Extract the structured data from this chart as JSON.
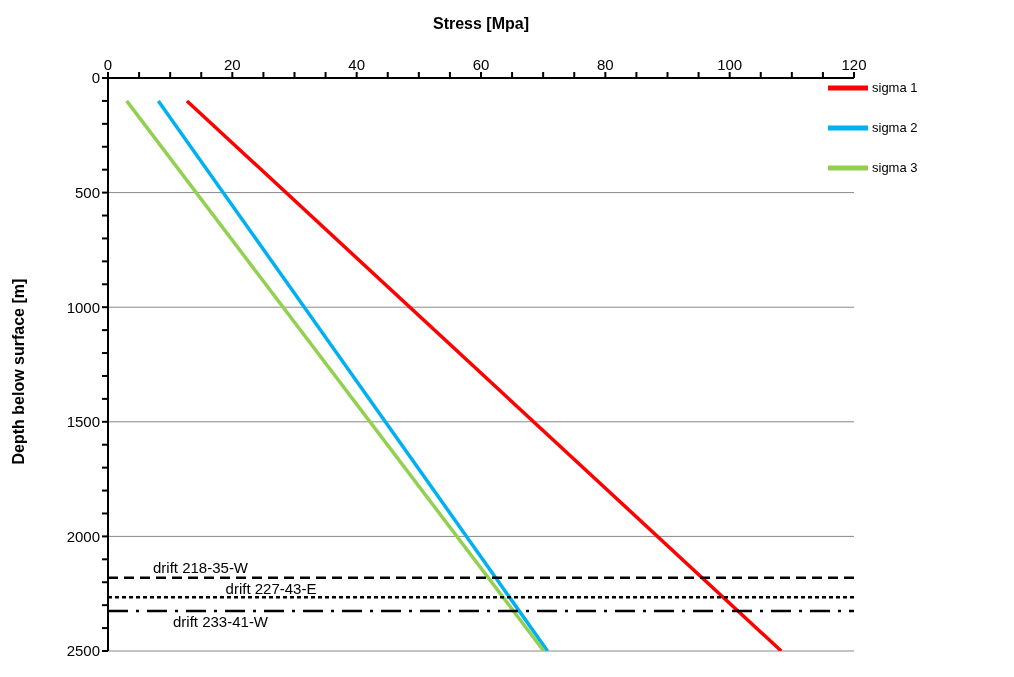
{
  "chart_data": {
    "type": "line",
    "xlabel": "Stress [Mpa]",
    "ylabel": "Depth below surface [m]",
    "xlim": [
      0,
      120
    ],
    "xticks": [
      0,
      {
        "value": 5,
        "label": null
      },
      {
        "value": 10,
        "label": null
      },
      {
        "value": 15,
        "label": null
      },
      20,
      {
        "value": 25,
        "label": null
      },
      {
        "value": 30,
        "label": null
      },
      {
        "value": 35,
        "label": null
      },
      40,
      {
        "value": 45,
        "label": null
      },
      {
        "value": 50,
        "label": null
      },
      {
        "value": 55,
        "label": null
      },
      60,
      {
        "value": 65,
        "label": null
      },
      {
        "value": 70,
        "label": null
      },
      {
        "value": 75,
        "label": null
      },
      80,
      {
        "value": 85,
        "label": null
      },
      {
        "value": 90,
        "label": null
      },
      {
        "value": 95,
        "label": null
      },
      100,
      {
        "value": 105,
        "label": null
      },
      {
        "value": 110,
        "label": null
      },
      {
        "value": 115,
        "label": null
      },
      120
    ],
    "ylim": [
      2500,
      0
    ],
    "yticks": [
      0,
      {
        "value": 100,
        "label": null
      },
      {
        "value": 200,
        "label": null
      },
      {
        "value": 300,
        "label": null
      },
      {
        "value": 400,
        "label": null
      },
      500,
      {
        "value": 600,
        "label": null
      },
      {
        "value": 700,
        "label": null
      },
      {
        "value": 800,
        "label": null
      },
      {
        "value": 900,
        "label": null
      },
      1000,
      {
        "value": 1100,
        "label": null
      },
      {
        "value": 1200,
        "label": null
      },
      {
        "value": 1300,
        "label": null
      },
      {
        "value": 1400,
        "label": null
      },
      1500,
      {
        "value": 1600,
        "label": null
      },
      {
        "value": 1700,
        "label": null
      },
      {
        "value": 1800,
        "label": null
      },
      {
        "value": 1900,
        "label": null
      },
      2000,
      {
        "value": 2100,
        "label": null
      },
      {
        "value": 2200,
        "label": null
      },
      {
        "value": 2300,
        "label": null
      },
      {
        "value": 2400,
        "label": null
      },
      2500
    ],
    "grid": "y",
    "legend": "top right",
    "marker": "none",
    "line_style": "solid",
    "series": [
      {
        "name": "sigma 1",
        "color": "#ff0000",
        "x": [
          12.7,
          108.3
        ],
        "values": [
          100,
          2500
        ]
      },
      {
        "name": "sigma 2",
        "color": "#00b0f0",
        "x": [
          8.1,
          70.7
        ],
        "values": [
          100,
          2500
        ]
      },
      {
        "name": "sigma 3",
        "color": "#92d050",
        "x": [
          3.0,
          70.1
        ],
        "values": [
          100,
          2500
        ]
      }
    ],
    "ref_lines": [
      {
        "axis": "y",
        "value": 2180,
        "label": "drift 218-35-W",
        "color": "#000000",
        "line_style": "dashed"
      },
      {
        "axis": "y",
        "value": 2265,
        "label": "drift 227-43-E",
        "color": "#000000",
        "line_style": "dotted"
      },
      {
        "axis": "y",
        "value": 2325,
        "label": "drift 233-41-W",
        "color": "#000000",
        "line_style": "dashdot"
      }
    ]
  }
}
